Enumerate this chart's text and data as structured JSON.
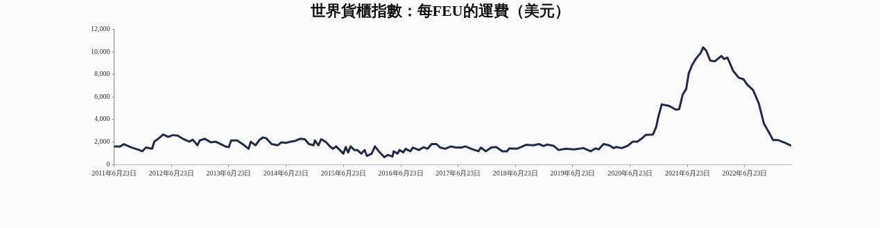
{
  "chart_data": {
    "type": "line",
    "title": "世界貨櫃指數：每FEU的運費（美元）",
    "x": [
      "2011-06-23",
      "2011-08-01",
      "2011-08-23",
      "2011-10-15",
      "2011-11-30",
      "2011-12-20",
      "2012-01-12",
      "2012-02-20",
      "2012-03-05",
      "2012-04-05",
      "2012-05-01",
      "2012-06-01",
      "2012-07-01",
      "2012-08-01",
      "2012-09-08",
      "2012-10-15",
      "2012-11-05",
      "2012-12-05",
      "2012-12-20",
      "2013-01-20",
      "2013-03-01",
      "2013-04-01",
      "2013-06-01",
      "2013-06-23",
      "2013-07-08",
      "2013-08-15",
      "2013-09-30",
      "2013-10-27",
      "2013-11-10",
      "2013-12-10",
      "2014-01-01",
      "2014-01-25",
      "2014-02-15",
      "2014-03-23",
      "2014-04-30",
      "2014-05-23",
      "2014-06-23",
      "2014-07-23",
      "2014-08-20",
      "2014-09-20",
      "2014-10-20",
      "2014-11-15",
      "2014-12-15",
      "2014-12-23",
      "2015-01-15",
      "2015-02-01",
      "2015-03-01",
      "2015-03-30",
      "2015-04-17",
      "2015-05-08",
      "2015-06-23",
      "2015-07-08",
      "2015-07-23",
      "2015-08-08",
      "2015-09-01",
      "2015-09-20",
      "2015-10-15",
      "2015-11-05",
      "2015-11-20",
      "2015-12-20",
      "2016-01-10",
      "2016-02-03",
      "2016-03-10",
      "2016-04-01",
      "2016-05-01",
      "2016-05-08",
      "2016-06-01",
      "2016-06-15",
      "2016-07-08",
      "2016-07-23",
      "2016-08-23",
      "2016-09-08",
      "2016-10-15",
      "2016-11-15",
      "2016-12-10",
      "2017-01-05",
      "2017-02-05",
      "2017-03-01",
      "2017-04-01",
      "2017-05-08",
      "2017-06-08",
      "2017-07-15",
      "2017-08-08",
      "2017-09-23",
      "2017-10-30",
      "2017-11-15",
      "2017-12-15",
      "2018-01-20",
      "2018-02-20",
      "2018-04-01",
      "2018-05-01",
      "2018-05-15",
      "2018-07-01",
      "2018-08-08",
      "2018-08-30",
      "2018-10-15",
      "2018-11-20",
      "2018-12-20",
      "2019-01-10",
      "2019-02-20",
      "2019-03-25",
      "2019-05-10",
      "2019-07-01",
      "2019-08-30",
      "2019-10-15",
      "2019-11-15",
      "2019-12-05",
      "2020-01-05",
      "2020-02-10",
      "2020-03-10",
      "2020-03-25",
      "2020-05-01",
      "2020-06-08",
      "2020-07-08",
      "2020-08-08",
      "2020-09-08",
      "2020-09-30",
      "2020-11-15",
      "2020-12-05",
      "2020-12-20",
      "2021-01-10",
      "2021-02-20",
      "2021-03-10",
      "2021-04-10",
      "2021-05-01",
      "2021-05-23",
      "2021-06-15",
      "2021-07-01",
      "2021-07-23",
      "2021-08-15",
      "2021-09-15",
      "2021-10-01",
      "2021-10-20",
      "2021-11-15",
      "2021-12-15",
      "2022-01-25",
      "2022-02-10",
      "2022-03-05",
      "2022-04-10",
      "2022-05-15",
      "2022-06-15",
      "2022-07-08",
      "2022-08-15",
      "2022-09-20",
      "2022-10-23",
      "2022-11-20",
      "2022-12-20",
      "2023-01-20",
      "2023-03-05",
      "2023-04-10"
    ],
    "series": [
      {
        "color": "#1e2a48",
        "values": [
          1600,
          1600,
          1800,
          1500,
          1280,
          1170,
          1500,
          1390,
          2020,
          2340,
          2660,
          2450,
          2600,
          2560,
          2240,
          2020,
          2200,
          1700,
          2130,
          2280,
          1960,
          2020,
          1600,
          1530,
          2130,
          2130,
          1700,
          1390,
          2020,
          1700,
          2130,
          2390,
          2340,
          1810,
          1700,
          1960,
          1920,
          2020,
          2090,
          2280,
          2240,
          1810,
          1700,
          2130,
          1700,
          2240,
          2020,
          1600,
          1390,
          1600,
          960,
          1550,
          1070,
          1600,
          1280,
          1280,
          960,
          1280,
          750,
          960,
          1600,
          1170,
          640,
          850,
          700,
          1170,
          960,
          1280,
          1070,
          1390,
          1170,
          1500,
          1280,
          1530,
          1390,
          1810,
          1810,
          1500,
          1390,
          1600,
          1500,
          1500,
          1600,
          1340,
          1170,
          1500,
          1170,
          1500,
          1550,
          1170,
          1170,
          1430,
          1390,
          1600,
          1750,
          1700,
          1810,
          1640,
          1770,
          1660,
          1280,
          1390,
          1340,
          1450,
          1170,
          1430,
          1340,
          1810,
          1700,
          1450,
          1550,
          1450,
          1660,
          2020,
          2020,
          2340,
          2620,
          2660,
          3300,
          4260,
          5330,
          5220,
          5110,
          4860,
          4900,
          6180,
          6710,
          8090,
          8840,
          9370,
          9900,
          10390,
          10120,
          9220,
          9160,
          9630,
          9370,
          9480,
          8310,
          7710,
          7560,
          7090,
          6600,
          5430,
          3620,
          2940,
          2170,
          2170,
          1920,
          1700
        ]
      }
    ],
    "xlim": [
      "2011-06-23",
      "2023-04-15"
    ],
    "xticks": [
      {
        "value": "2011-06-23",
        "label": "2011年6月23日"
      },
      {
        "value": "2012-06-23",
        "label": "2012年6月23日"
      },
      {
        "value": "2013-06-23",
        "label": "2013年6月23日"
      },
      {
        "value": "2014-06-23",
        "label": "2014年6月23日"
      },
      {
        "value": "2015-06-23",
        "label": "2015年6月23日"
      },
      {
        "value": "2016-06-23",
        "label": "2016年6月23日"
      },
      {
        "value": "2017-06-23",
        "label": "2017年6月23日"
      },
      {
        "value": "2018-06-23",
        "label": "2018年6月23日"
      },
      {
        "value": "2019-06-23",
        "label": "2019年6月23日"
      },
      {
        "value": "2020-06-23",
        "label": "2020年6月23日"
      },
      {
        "value": "2021-06-23",
        "label": "2021年6月23日"
      },
      {
        "value": "2022-06-23",
        "label": "2022年6月23日"
      }
    ],
    "ylim": [
      0,
      12000
    ],
    "yticks": [
      {
        "value": 0,
        "label": "0"
      },
      {
        "value": 2000,
        "label": "2,000"
      },
      {
        "value": 4000,
        "label": "4,000"
      },
      {
        "value": 6000,
        "label": "6,000"
      },
      {
        "value": 8000,
        "label": "8,000"
      },
      {
        "value": 10000,
        "label": "10,000"
      },
      {
        "value": 12000,
        "label": "12,000"
      }
    ],
    "grid": false
  }
}
